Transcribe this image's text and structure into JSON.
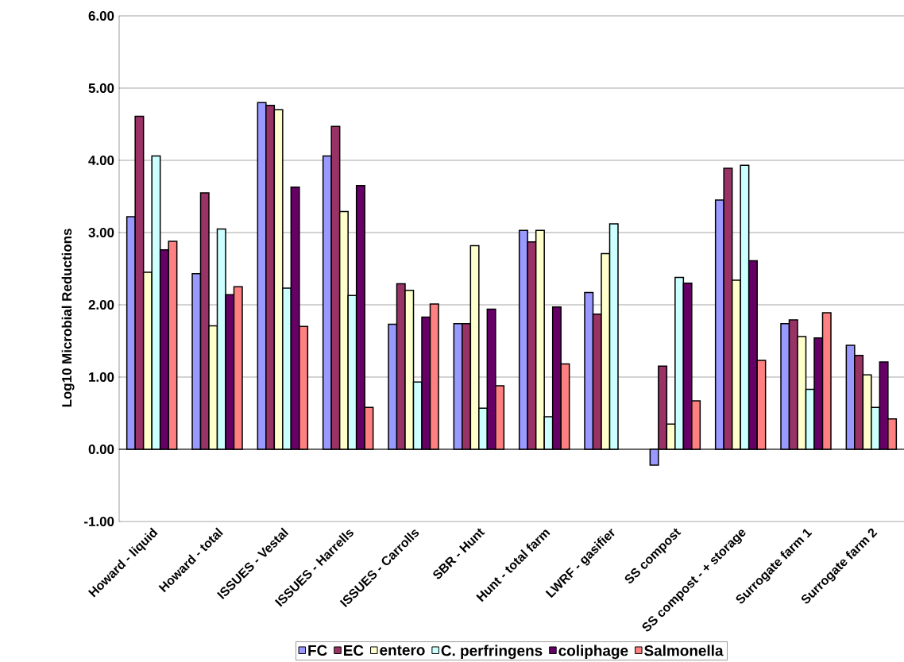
{
  "chart_data": {
    "type": "bar",
    "ylabel": "Log10 Microbial Reductions",
    "categories": [
      "Howard - liquid",
      "Howard - total",
      "ISSUES - Vestal",
      "ISSUES - Harrells",
      "ISSUES - Carrolls",
      "SBR - Hunt",
      "Hunt - total farm",
      "LWRF - gasifier",
      "SS compost",
      "SS compost - + storage",
      "Surrogate farm 1",
      "Surrogate farm 2"
    ],
    "series": [
      {
        "name": "FC",
        "color": "#9999ff",
        "values": [
          3.22,
          2.43,
          4.8,
          4.06,
          1.73,
          1.74,
          3.03,
          2.17,
          -0.22,
          3.45,
          1.74,
          1.44
        ]
      },
      {
        "name": "EC",
        "color": "#993366",
        "values": [
          4.61,
          3.55,
          4.76,
          4.47,
          2.29,
          1.74,
          2.87,
          1.87,
          1.15,
          3.89,
          1.79,
          1.3
        ]
      },
      {
        "name": "entero",
        "color": "#ffffcc",
        "values": [
          2.45,
          1.71,
          4.7,
          3.29,
          2.2,
          2.82,
          3.03,
          2.71,
          0.35,
          2.34,
          1.56,
          1.03
        ]
      },
      {
        "name": "C. perfringens",
        "color": "#ccffff",
        "values": [
          4.06,
          3.05,
          2.23,
          2.13,
          0.93,
          0.57,
          0.45,
          3.12,
          2.38,
          3.93,
          0.83,
          0.58
        ]
      },
      {
        "name": "coliphage",
        "color": "#660066",
        "values": [
          2.76,
          2.14,
          3.63,
          3.65,
          1.83,
          1.94,
          1.97,
          null,
          2.3,
          2.61,
          1.54,
          1.21
        ]
      },
      {
        "name": "Salmonella",
        "color": "#ff8080",
        "values": [
          2.88,
          2.25,
          1.7,
          0.58,
          2.01,
          0.88,
          1.18,
          null,
          0.67,
          1.23,
          1.89,
          0.42
        ]
      }
    ],
    "ylim": [
      -1,
      6
    ],
    "yticks": [
      {
        "value": -1,
        "label": "-1.00"
      },
      {
        "value": 0,
        "label": "0.00"
      },
      {
        "value": 1,
        "label": "1.00"
      },
      {
        "value": 2,
        "label": "2.00"
      },
      {
        "value": 3,
        "label": "3.00"
      },
      {
        "value": 4,
        "label": "4.00"
      },
      {
        "value": 5,
        "label": "5.00"
      },
      {
        "value": 6,
        "label": "6.00"
      }
    ],
    "grid": "y",
    "legend": "bottom"
  }
}
